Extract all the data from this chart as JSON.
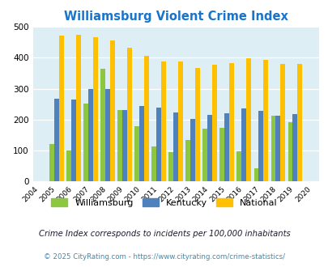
{
  "title": "Williamsburg Violent Crime Index",
  "years": [
    2004,
    2005,
    2006,
    2007,
    2008,
    2009,
    2010,
    2011,
    2012,
    2013,
    2014,
    2015,
    2016,
    2017,
    2018,
    2019,
    2020
  ],
  "williamsburg": [
    null,
    120,
    100,
    253,
    365,
    230,
    178,
    114,
    96,
    135,
    172,
    173,
    97,
    43,
    212,
    193,
    null
  ],
  "kentucky": [
    null,
    267,
    265,
    300,
    300,
    232,
    245,
    240,
    224,
    203,
    215,
    221,
    236,
    228,
    213,
    217,
    null
  ],
  "national": [
    null,
    470,
    473,
    467,
    455,
    431,
    405,
    387,
    387,
    368,
    377,
    383,
    397,
    394,
    380,
    379,
    null
  ],
  "bar_width": 0.28,
  "color_williamsburg": "#8dc63f",
  "color_kentucky": "#4f81bd",
  "color_national": "#ffc000",
  "bg_color": "#ddeef5",
  "ylim": [
    0,
    500
  ],
  "yticks": [
    0,
    100,
    200,
    300,
    400,
    500
  ],
  "footnote1": "Crime Index corresponds to incidents per 100,000 inhabitants",
  "footnote2": "© 2025 CityRating.com - https://www.cityrating.com/crime-statistics/",
  "legend_labels": [
    "Williamsburg",
    "Kentucky",
    "National"
  ],
  "title_color": "#1874cd",
  "footnote1_color": "#1a1a2e",
  "footnote2_color": "#4488aa"
}
